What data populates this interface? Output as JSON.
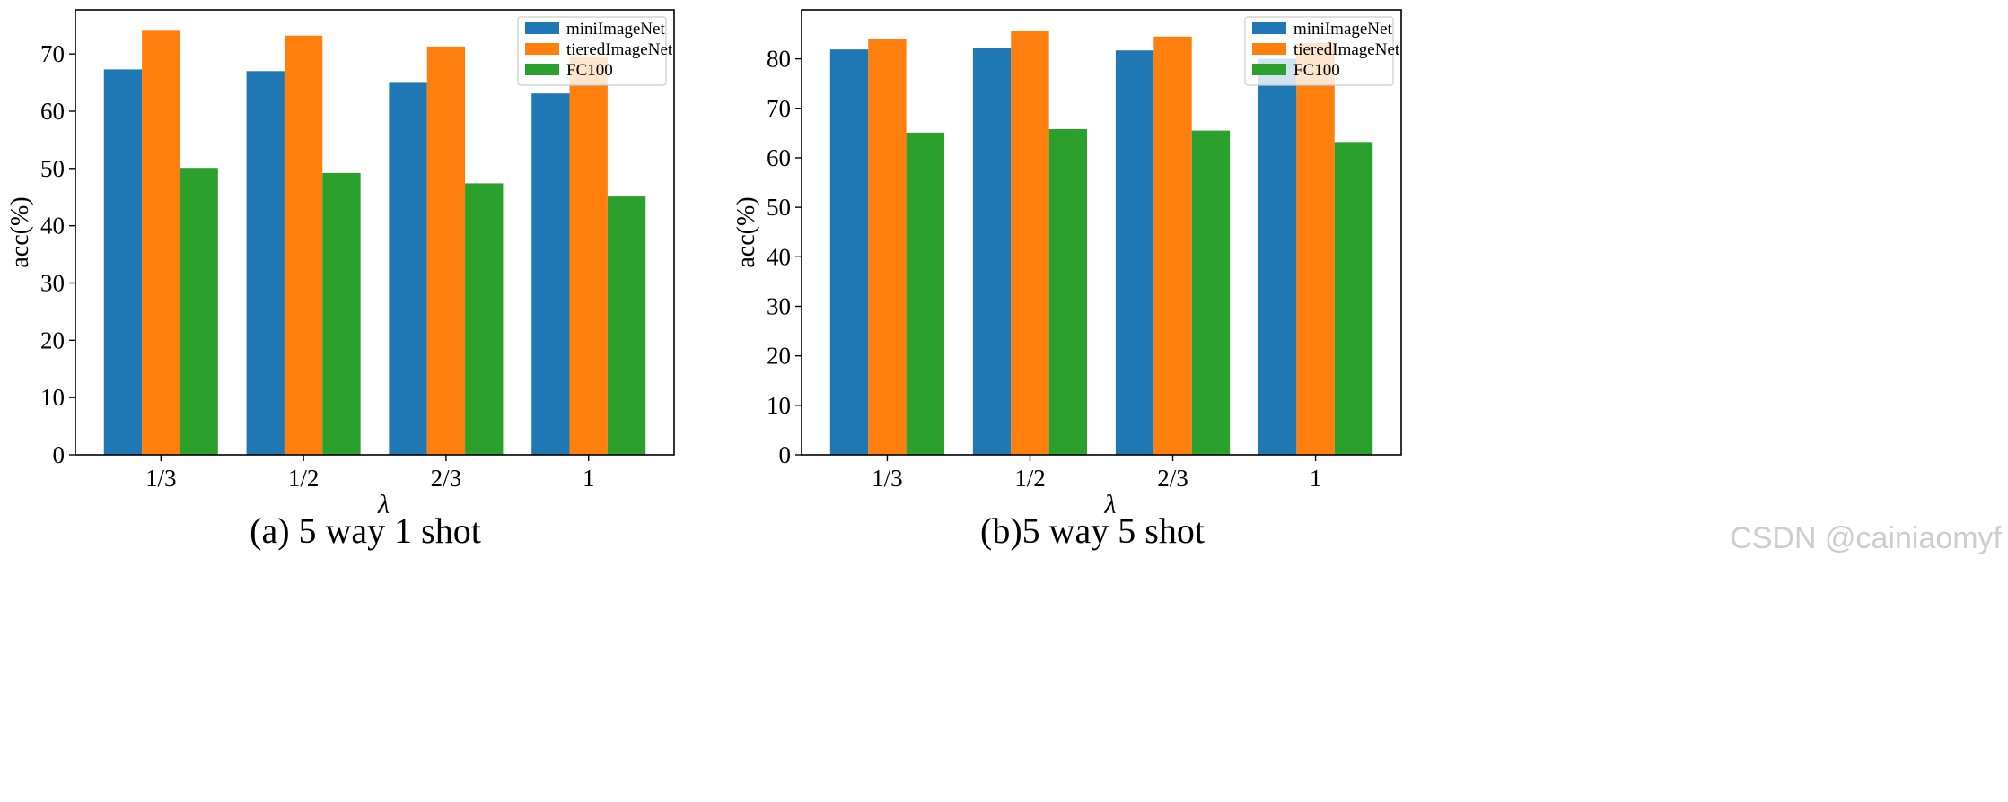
{
  "colors": {
    "miniImageNet": "#1f77b4",
    "tieredImageNet": "#ff7f0e",
    "FC100": "#2ca02c"
  },
  "watermark": "CSDN @cainiaomyf",
  "chart_data": [
    {
      "type": "bar",
      "caption": "(a) 5 way 1 shot",
      "xlabel": "λ",
      "ylabel": "acc(%)",
      "ylim": [
        0,
        77.7
      ],
      "yticks": [
        "0",
        "10",
        "20",
        "30",
        "40",
        "50",
        "60",
        "70"
      ],
      "categories": [
        "1/3",
        "1/2",
        "2/3",
        "1"
      ],
      "legend_position": "top-right",
      "series": [
        {
          "name": "miniImageNet",
          "values": [
            67.3,
            67.0,
            65.1,
            63.1
          ]
        },
        {
          "name": "tieredImageNet",
          "values": [
            74.2,
            73.2,
            71.3,
            69.6
          ]
        },
        {
          "name": "FC100",
          "values": [
            50.1,
            49.2,
            47.4,
            45.1
          ]
        }
      ]
    },
    {
      "type": "bar",
      "caption": "(b)5 way 5 shot",
      "xlabel": "λ",
      "ylabel": "acc(%)",
      "ylim": [
        0,
        89.9
      ],
      "yticks": [
        "0",
        "10",
        "20",
        "30",
        "40",
        "50",
        "60",
        "70",
        "80"
      ],
      "categories": [
        "1/3",
        "1/2",
        "2/3",
        "1"
      ],
      "legend_position": "top-right",
      "series": [
        {
          "name": "miniImageNet",
          "values": [
            81.9,
            82.2,
            81.7,
            80.0
          ]
        },
        {
          "name": "tieredImageNet",
          "values": [
            84.1,
            85.6,
            84.5,
            83.2
          ]
        },
        {
          "name": "FC100",
          "values": [
            65.1,
            65.8,
            65.5,
            63.2
          ]
        }
      ]
    }
  ]
}
